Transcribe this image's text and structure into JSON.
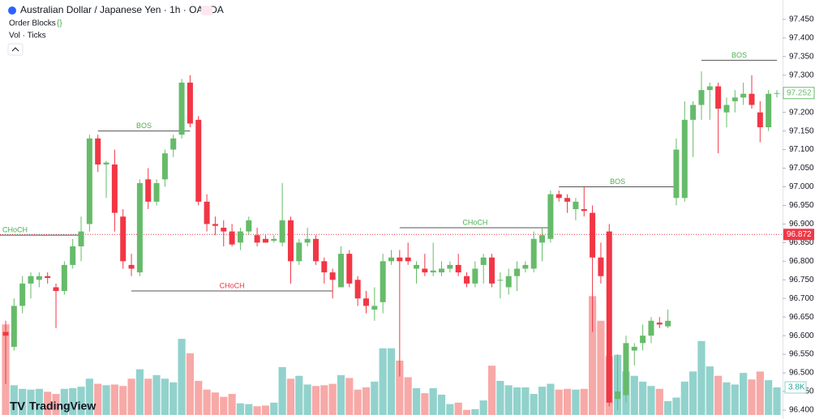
{
  "header": {
    "symbol": "Australian Dollar / Japanese Yen · 1h · OANDA",
    "indicator": "Order Blocks",
    "volume": "Vol · Ticks",
    "logo": "TradingView"
  },
  "chart_data": {
    "type": "candlestick",
    "up_color": "#66bb6a",
    "down_color": "#f23645",
    "volume_up_color": "#92d2cc",
    "volume_down_color": "#f7a9a7",
    "ylim": [
      96.376,
      97.502
    ],
    "yticks": [
      {
        "value": 97.45,
        "label": "97.450"
      },
      {
        "value": 97.4,
        "label": "97.400"
      },
      {
        "value": 97.35,
        "label": "97.350"
      },
      {
        "value": 97.3,
        "label": "97.300"
      },
      {
        "value": 97.25,
        "label": "97.250"
      },
      {
        "value": 97.2,
        "label": "97.200"
      },
      {
        "value": 97.15,
        "label": "97.150"
      },
      {
        "value": 97.1,
        "label": "97.100"
      },
      {
        "value": 97.05,
        "label": "97.050"
      },
      {
        "value": 97.0,
        "label": "97.000"
      },
      {
        "value": 96.95,
        "label": "96.950"
      },
      {
        "value": 96.9,
        "label": "96.900"
      },
      {
        "value": 96.85,
        "label": "96.850"
      },
      {
        "value": 96.8,
        "label": "96.800"
      },
      {
        "value": 96.75,
        "label": "96.750"
      },
      {
        "value": 96.7,
        "label": "96.700"
      },
      {
        "value": 96.65,
        "label": "96.650"
      },
      {
        "value": 96.6,
        "label": "96.600"
      },
      {
        "value": 96.55,
        "label": "96.550"
      },
      {
        "value": 96.5,
        "label": "96.500"
      },
      {
        "value": 96.45,
        "label": "96.450"
      },
      {
        "value": 96.4,
        "label": "96.400"
      }
    ],
    "open": [
      96.61,
      96.57,
      96.68,
      96.74,
      96.75,
      96.76,
      96.73,
      96.72,
      96.79,
      96.84,
      96.9,
      97.13,
      97.06,
      97.06,
      96.92,
      96.79,
      96.77,
      97.02,
      96.96,
      97.02,
      97.1,
      97.14,
      97.28,
      97.18,
      96.96,
      96.9,
      96.89,
      96.88,
      96.85,
      96.88,
      96.87,
      96.86,
      96.855,
      96.85,
      96.91,
      96.8,
      96.85,
      96.86,
      96.8,
      96.77,
      96.73,
      96.82,
      96.75,
      96.7,
      96.67,
      96.69,
      96.8,
      96.81,
      96.81,
      96.78,
      96.78,
      96.77,
      96.77,
      96.78,
      96.79,
      96.76,
      96.74,
      96.79,
      96.81,
      96.75,
      96.73,
      96.76,
      96.78,
      96.78,
      96.85,
      96.86,
      96.98,
      96.97,
      96.94,
      96.94,
      96.93,
      96.81,
      96.88,
      96.43,
      96.44,
      96.56,
      96.58,
      96.6,
      96.635,
      96.625,
      96.97,
      96.97,
      97.18,
      97.22,
      97.26,
      97.27,
      97.2,
      97.23,
      97.24,
      97.25,
      97.2,
      97.16,
      97.25
    ],
    "high": [
      96.64,
      96.7,
      96.76,
      96.77,
      96.77,
      96.77,
      96.74,
      96.8,
      96.86,
      96.92,
      97.14,
      97.14,
      97.07,
      97.1,
      96.94,
      96.82,
      97.02,
      97.05,
      97.02,
      97.1,
      97.14,
      97.29,
      97.3,
      97.19,
      96.98,
      96.92,
      96.91,
      96.9,
      96.89,
      96.92,
      96.89,
      96.87,
      96.87,
      97.01,
      96.92,
      96.86,
      96.89,
      96.87,
      96.81,
      96.78,
      96.84,
      96.83,
      96.76,
      96.72,
      96.73,
      96.82,
      96.83,
      96.83,
      96.85,
      96.8,
      96.82,
      96.85,
      96.8,
      96.8,
      96.82,
      96.77,
      96.8,
      96.82,
      96.82,
      96.77,
      96.78,
      96.8,
      96.8,
      96.88,
      96.89,
      96.99,
      96.99,
      96.98,
      96.97,
      97.0,
      96.95,
      96.85,
      96.9,
      96.55,
      96.6,
      96.58,
      96.63,
      96.65,
      96.65,
      96.67,
      97.13,
      97.23,
      97.23,
      97.31,
      97.28,
      97.28,
      97.24,
      97.26,
      97.28,
      97.3,
      97.23,
      97.26,
      97.26
    ],
    "low": [
      96.47,
      96.56,
      96.66,
      96.7,
      96.73,
      96.74,
      96.62,
      96.71,
      96.78,
      96.8,
      96.88,
      97.04,
      96.97,
      96.88,
      96.78,
      96.76,
      96.76,
      96.94,
      96.95,
      97.0,
      97.08,
      97.13,
      97.16,
      96.95,
      96.88,
      96.87,
      96.84,
      96.84,
      96.83,
      96.87,
      96.84,
      96.85,
      96.85,
      96.84,
      96.74,
      96.79,
      96.84,
      96.79,
      96.74,
      96.7,
      96.73,
      96.73,
      96.68,
      96.66,
      96.64,
      96.66,
      96.79,
      96.49,
      96.79,
      96.74,
      96.76,
      96.76,
      96.76,
      96.77,
      96.76,
      96.73,
      96.73,
      96.74,
      96.73,
      96.7,
      96.71,
      96.72,
      96.77,
      96.77,
      96.8,
      96.85,
      96.96,
      96.93,
      96.91,
      96.92,
      96.61,
      96.74,
      96.41,
      96.4,
      96.42,
      96.52,
      96.56,
      96.58,
      96.62,
      96.62,
      96.95,
      96.96,
      97.08,
      97.18,
      97.18,
      97.09,
      97.16,
      97.2,
      97.22,
      97.21,
      97.12,
      97.15,
      97.24
    ],
    "close": [
      96.6,
      96.68,
      96.74,
      96.76,
      96.76,
      96.755,
      96.72,
      96.79,
      96.84,
      96.88,
      97.13,
      97.06,
      97.065,
      96.93,
      96.8,
      96.78,
      97.01,
      96.96,
      97.01,
      97.09,
      97.13,
      97.28,
      97.17,
      96.96,
      96.9,
      96.895,
      96.88,
      96.845,
      96.88,
      96.91,
      96.85,
      96.85,
      96.86,
      96.91,
      96.8,
      96.85,
      96.86,
      96.8,
      96.77,
      96.75,
      96.82,
      96.74,
      96.7,
      96.68,
      96.68,
      96.8,
      96.81,
      96.8,
      96.8,
      96.79,
      96.77,
      96.775,
      96.78,
      96.79,
      96.77,
      96.74,
      96.78,
      96.81,
      96.74,
      96.75,
      96.76,
      96.78,
      96.79,
      96.86,
      96.87,
      96.98,
      96.97,
      96.96,
      96.96,
      96.935,
      96.81,
      96.76,
      96.42,
      96.45,
      96.58,
      96.57,
      96.6,
      96.64,
      96.63,
      96.64,
      97.1,
      97.18,
      97.22,
      97.26,
      97.27,
      97.21,
      97.22,
      97.24,
      97.25,
      97.22,
      97.16,
      97.25,
      97.252
    ],
    "volume": {
      "vlim": [
        0,
        17000
      ],
      "values": [
        12500,
        4100,
        3600,
        3500,
        3600,
        3200,
        2900,
        3600,
        3700,
        3900,
        5000,
        4300,
        4100,
        4200,
        4000,
        5000,
        6300,
        5000,
        5500,
        5000,
        4500,
        10500,
        8500,
        4700,
        3500,
        3100,
        2500,
        2900,
        1600,
        1500,
        1200,
        1300,
        1700,
        6600,
        5000,
        5400,
        4200,
        4000,
        4100,
        4300,
        5500,
        5100,
        3500,
        3800,
        4600,
        9200,
        9200,
        7500,
        5200,
        3700,
        3000,
        3700,
        2800,
        1500,
        1700,
        700,
        800,
        2000,
        6800,
        4700,
        4100,
        3800,
        3800,
        2900,
        3900,
        4300,
        3500,
        3600,
        3500,
        3600,
        16400,
        13000,
        8100,
        8300,
        6000,
        5400,
        4600,
        4000,
        3600,
        1900,
        2400,
        4600,
        6000,
        10200,
        6700,
        5400,
        4500,
        4200,
        5800,
        4900,
        6000,
        4800,
        3800
      ],
      "last_label": "3.8K"
    },
    "price_line": {
      "value": 96.872,
      "color": "#f23645"
    },
    "structure": [
      {
        "label": "CHoCH",
        "price": 96.87,
        "from": 0,
        "to": 9,
        "color": "#4caf50",
        "start_edge": true
      },
      {
        "label": "BOS",
        "price": 97.15,
        "from": 11,
        "to": 22,
        "color": "#4caf50"
      },
      {
        "label": "CHoCH",
        "price": 96.72,
        "from": 15,
        "to": 39,
        "color": "#f23645"
      },
      {
        "label": "CHoCH",
        "price": 96.89,
        "from": 47,
        "to": 65,
        "color": "#4caf50"
      },
      {
        "label": "BOS",
        "price": 97.0,
        "from": 66,
        "to": 80,
        "color": "#4caf50"
      },
      {
        "label": "BOS",
        "price": 97.34,
        "from": 83,
        "to": 92,
        "color": "#4caf50"
      }
    ]
  }
}
